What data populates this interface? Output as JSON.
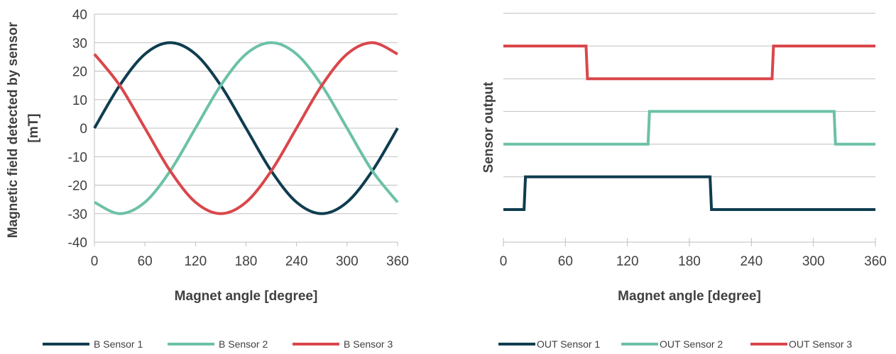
{
  "chart_data": [
    {
      "type": "line",
      "title": "",
      "xlabel": "Magnet angle [degree]",
      "ylabel": "Magnetic field detected by sensor [mT]",
      "ylabel_lines": [
        "Magnetic field detected by sensor",
        "[mT]"
      ],
      "xlim": [
        0,
        360
      ],
      "ylim": [
        -40,
        40
      ],
      "x_ticks": [
        "0",
        "60",
        "120",
        "180",
        "240",
        "300",
        "360"
      ],
      "y_ticks": [
        "40",
        "30",
        "20",
        "10",
        "0",
        "-10",
        "-20",
        "-30",
        "-40"
      ],
      "grid": "horizontal",
      "legend_position": "bottom",
      "series": [
        {
          "name": "B Sensor 1",
          "color": "#0f3d4f",
          "x": [
            0,
            30,
            60,
            90,
            120,
            150,
            180,
            210,
            240,
            270,
            300,
            330,
            360
          ],
          "y": [
            0,
            15,
            26,
            30,
            26,
            15,
            0,
            -15,
            -26,
            -30,
            -26,
            -15,
            0
          ]
        },
        {
          "name": "B Sensor 2",
          "color": "#6cc1a8",
          "x": [
            0,
            30,
            60,
            90,
            120,
            150,
            180,
            210,
            240,
            270,
            300,
            330,
            360
          ],
          "y": [
            -26,
            -30,
            -26,
            -15,
            0,
            15,
            26,
            30,
            26,
            15,
            0,
            -15,
            -26
          ]
        },
        {
          "name": "B Sensor 3",
          "color": "#d9474b",
          "x": [
            0,
            30,
            60,
            90,
            120,
            150,
            180,
            210,
            240,
            270,
            300,
            330,
            360
          ],
          "y": [
            26,
            15,
            0,
            -15,
            -26,
            -30,
            -26,
            -15,
            0,
            15,
            26,
            30,
            26
          ]
        }
      ]
    },
    {
      "type": "line",
      "title": "",
      "xlabel": "Magnet angle [degree]",
      "ylabel": "Sensor output",
      "xlim": [
        0,
        360
      ],
      "x_ticks": [
        "0",
        "60",
        "120",
        "180",
        "240",
        "300",
        "360"
      ],
      "grid": "horizontal",
      "legend_position": "bottom",
      "series": [
        {
          "name": "OUT Sensor 1",
          "color": "#0f3d4f",
          "x": [
            0,
            20,
            20,
            200,
            200,
            360
          ],
          "y": [
            0,
            0,
            1,
            1,
            0,
            0
          ]
        },
        {
          "name": "OUT Sensor 2",
          "color": "#6cc1a8",
          "x": [
            0,
            140,
            140,
            320,
            320,
            360
          ],
          "y": [
            2,
            2,
            3,
            3,
            2,
            2
          ]
        },
        {
          "name": "OUT Sensor 3",
          "color": "#d9474b",
          "x": [
            0,
            80,
            80,
            260,
            260,
            360
          ],
          "y": [
            5,
            5,
            4,
            4,
            5,
            5
          ]
        }
      ]
    }
  ]
}
